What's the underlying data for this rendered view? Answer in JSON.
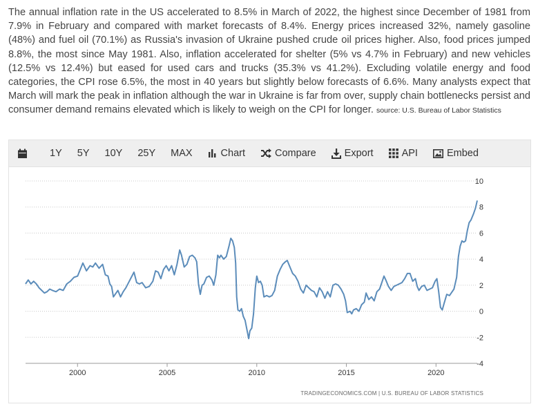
{
  "description": {
    "text": "The annual inflation rate in the US accelerated to 8.5% in March of 2022, the highest since December of 1981 from 7.9% in February and compared with market forecasts of 8.4%. Energy prices increased 32%, namely gasoline (48%) and fuel oil (70.1%) as Russia's invasion of Ukraine pushed crude oil prices higher. Also, food prices jumped 8.8%, the most since May 1981. Also, inflation accelerated for shelter (5% vs 4.7% in February) and new vehicles (12.5% vs 12.4%) but eased for used cars and trucks (35.3% vs 41.2%). Excluding volatile energy and food categories, the CPI rose 6.5%, the most in 40 years but slightly below forecasts of 6.6%. Many analysts expect that March will mark the peak in inflation although the war in Ukraine is far from over, supply chain bottlenecks persist and consumer demand remains elevated which is likely to weigh on the CPI for longer.",
    "source": "source: U.S. Bureau of Labor Statistics"
  },
  "toolbar": {
    "calendar_icon": "calendar-icon",
    "range_1y": "1Y",
    "range_5y": "5Y",
    "range_10y": "10Y",
    "range_25y": "25Y",
    "range_max": "MAX",
    "chart_label": "Chart",
    "compare_label": "Compare",
    "export_label": "Export",
    "api_label": "API",
    "embed_label": "Embed"
  },
  "credit": "TRADINGECONOMICS.COM  |  U.S. BUREAU OF LABOR STATISTICS",
  "chart_data": {
    "type": "line",
    "line_color": "#5b8cba",
    "xlim": [
      1997.1,
      2022.3
    ],
    "ylim": [
      -4,
      10
    ],
    "x_ticks": [
      2000,
      2005,
      2010,
      2015,
      2020
    ],
    "y_ticks": [
      10,
      8,
      6,
      4,
      2,
      0,
      -2,
      -4
    ],
    "grid": true,
    "series": [
      {
        "points": [
          [
            1997.1,
            2.1
          ],
          [
            1997.25,
            2.4
          ],
          [
            1997.4,
            2.1
          ],
          [
            1997.55,
            2.3
          ],
          [
            1997.7,
            2.1
          ],
          [
            1997.85,
            1.8
          ],
          [
            1998.0,
            1.6
          ],
          [
            1998.15,
            1.4
          ],
          [
            1998.3,
            1.5
          ],
          [
            1998.45,
            1.7
          ],
          [
            1998.6,
            1.6
          ],
          [
            1998.8,
            1.5
          ],
          [
            1999.0,
            1.7
          ],
          [
            1999.2,
            1.6
          ],
          [
            1999.4,
            2.1
          ],
          [
            1999.6,
            2.3
          ],
          [
            1999.8,
            2.6
          ],
          [
            2000.0,
            2.7
          ],
          [
            2000.15,
            3.2
          ],
          [
            2000.3,
            3.7
          ],
          [
            2000.5,
            3.1
          ],
          [
            2000.7,
            3.5
          ],
          [
            2000.85,
            3.4
          ],
          [
            2001.0,
            3.7
          ],
          [
            2001.2,
            3.3
          ],
          [
            2001.4,
            3.6
          ],
          [
            2001.55,
            2.8
          ],
          [
            2001.7,
            2.7
          ],
          [
            2001.8,
            2.1
          ],
          [
            2001.9,
            1.9
          ],
          [
            2002.0,
            1.1
          ],
          [
            2002.1,
            1.3
          ],
          [
            2002.25,
            1.6
          ],
          [
            2002.4,
            1.1
          ],
          [
            2002.55,
            1.5
          ],
          [
            2002.7,
            1.8
          ],
          [
            2002.85,
            2.2
          ],
          [
            2003.0,
            2.6
          ],
          [
            2003.15,
            3.0
          ],
          [
            2003.3,
            2.2
          ],
          [
            2003.45,
            2.1
          ],
          [
            2003.6,
            2.2
          ],
          [
            2003.8,
            1.8
          ],
          [
            2004.0,
            1.9
          ],
          [
            2004.2,
            2.3
          ],
          [
            2004.35,
            3.1
          ],
          [
            2004.5,
            3.0
          ],
          [
            2004.65,
            2.5
          ],
          [
            2004.8,
            3.2
          ],
          [
            2004.95,
            3.5
          ],
          [
            2005.1,
            3.1
          ],
          [
            2005.25,
            3.5
          ],
          [
            2005.4,
            2.8
          ],
          [
            2005.55,
            3.6
          ],
          [
            2005.7,
            4.7
          ],
          [
            2005.8,
            4.3
          ],
          [
            2005.95,
            3.4
          ],
          [
            2006.1,
            3.6
          ],
          [
            2006.25,
            4.2
          ],
          [
            2006.4,
            4.3
          ],
          [
            2006.55,
            4.1
          ],
          [
            2006.65,
            3.8
          ],
          [
            2006.75,
            2.1
          ],
          [
            2006.85,
            1.3
          ],
          [
            2006.95,
            2.0
          ],
          [
            2007.05,
            2.1
          ],
          [
            2007.2,
            2.6
          ],
          [
            2007.35,
            2.7
          ],
          [
            2007.5,
            2.4
          ],
          [
            2007.6,
            2.0
          ],
          [
            2007.72,
            2.8
          ],
          [
            2007.82,
            4.3
          ],
          [
            2007.92,
            4.1
          ],
          [
            2008.0,
            4.3
          ],
          [
            2008.15,
            4.0
          ],
          [
            2008.3,
            4.2
          ],
          [
            2008.45,
            5.0
          ],
          [
            2008.55,
            5.6
          ],
          [
            2008.65,
            5.4
          ],
          [
            2008.75,
            4.9
          ],
          [
            2008.82,
            3.7
          ],
          [
            2008.88,
            1.1
          ],
          [
            2008.95,
            0.1
          ],
          [
            2009.05,
            0.0
          ],
          [
            2009.15,
            0.2
          ],
          [
            2009.25,
            -0.4
          ],
          [
            2009.35,
            -0.7
          ],
          [
            2009.45,
            -1.4
          ],
          [
            2009.55,
            -2.1
          ],
          [
            2009.62,
            -1.5
          ],
          [
            2009.72,
            -1.3
          ],
          [
            2009.82,
            -0.2
          ],
          [
            2009.92,
            1.8
          ],
          [
            2010.0,
            2.7
          ],
          [
            2010.1,
            2.2
          ],
          [
            2010.2,
            2.3
          ],
          [
            2010.3,
            2.0
          ],
          [
            2010.4,
            1.1
          ],
          [
            2010.55,
            1.2
          ],
          [
            2010.7,
            1.1
          ],
          [
            2010.85,
            1.2
          ],
          [
            2011.0,
            1.6
          ],
          [
            2011.15,
            2.7
          ],
          [
            2011.3,
            3.2
          ],
          [
            2011.45,
            3.6
          ],
          [
            2011.6,
            3.8
          ],
          [
            2011.7,
            3.9
          ],
          [
            2011.85,
            3.4
          ],
          [
            2012.0,
            2.9
          ],
          [
            2012.15,
            2.7
          ],
          [
            2012.3,
            2.3
          ],
          [
            2012.45,
            1.7
          ],
          [
            2012.6,
            1.4
          ],
          [
            2012.75,
            2.0
          ],
          [
            2012.9,
            1.8
          ],
          [
            2013.05,
            1.6
          ],
          [
            2013.2,
            1.5
          ],
          [
            2013.35,
            1.1
          ],
          [
            2013.5,
            1.8
          ],
          [
            2013.65,
            1.5
          ],
          [
            2013.8,
            1.0
          ],
          [
            2013.95,
            1.5
          ],
          [
            2014.1,
            1.1
          ],
          [
            2014.25,
            2.0
          ],
          [
            2014.4,
            2.1
          ],
          [
            2014.55,
            2.0
          ],
          [
            2014.7,
            1.7
          ],
          [
            2014.85,
            1.3
          ],
          [
            2014.95,
            0.8
          ],
          [
            2015.05,
            -0.1
          ],
          [
            2015.2,
            0.0
          ],
          [
            2015.3,
            -0.2
          ],
          [
            2015.4,
            0.1
          ],
          [
            2015.55,
            0.2
          ],
          [
            2015.7,
            0.0
          ],
          [
            2015.85,
            0.5
          ],
          [
            2016.0,
            0.7
          ],
          [
            2016.1,
            1.4
          ],
          [
            2016.25,
            0.9
          ],
          [
            2016.4,
            1.1
          ],
          [
            2016.55,
            0.8
          ],
          [
            2016.7,
            1.5
          ],
          [
            2016.85,
            1.7
          ],
          [
            2016.95,
            2.1
          ],
          [
            2017.1,
            2.7
          ],
          [
            2017.2,
            2.4
          ],
          [
            2017.35,
            1.9
          ],
          [
            2017.5,
            1.6
          ],
          [
            2017.65,
            1.9
          ],
          [
            2017.8,
            2.0
          ],
          [
            2017.95,
            2.1
          ],
          [
            2018.1,
            2.2
          ],
          [
            2018.25,
            2.5
          ],
          [
            2018.4,
            2.9
          ],
          [
            2018.55,
            2.9
          ],
          [
            2018.7,
            2.3
          ],
          [
            2018.85,
            2.5
          ],
          [
            2018.95,
            1.9
          ],
          [
            2019.05,
            1.6
          ],
          [
            2019.2,
            1.9
          ],
          [
            2019.35,
            2.0
          ],
          [
            2019.5,
            1.6
          ],
          [
            2019.65,
            1.7
          ],
          [
            2019.8,
            1.8
          ],
          [
            2019.95,
            2.3
          ],
          [
            2020.05,
            2.5
          ],
          [
            2020.15,
            1.5
          ],
          [
            2020.25,
            0.3
          ],
          [
            2020.35,
            0.1
          ],
          [
            2020.45,
            0.6
          ],
          [
            2020.6,
            1.3
          ],
          [
            2020.75,
            1.2
          ],
          [
            2020.85,
            1.4
          ],
          [
            2021.0,
            1.7
          ],
          [
            2021.15,
            2.6
          ],
          [
            2021.25,
            4.2
          ],
          [
            2021.35,
            5.0
          ],
          [
            2021.45,
            5.4
          ],
          [
            2021.55,
            5.3
          ],
          [
            2021.65,
            5.4
          ],
          [
            2021.75,
            6.2
          ],
          [
            2021.85,
            6.8
          ],
          [
            2021.95,
            7.0
          ],
          [
            2022.1,
            7.5
          ],
          [
            2022.2,
            7.9
          ],
          [
            2022.3,
            8.5
          ]
        ]
      }
    ]
  }
}
